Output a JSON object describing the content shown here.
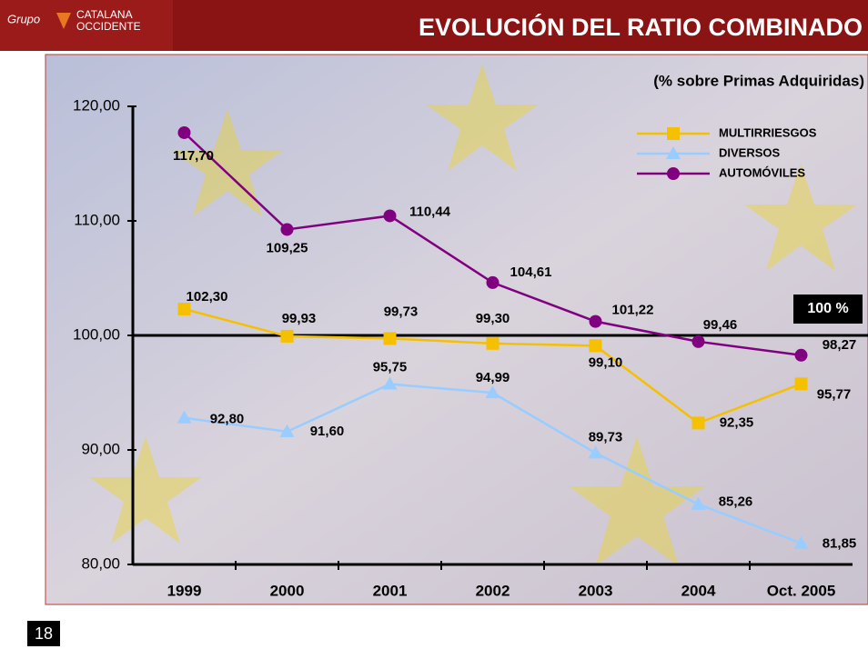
{
  "header": {
    "logo": {
      "group": "Grupo",
      "name1": "CATALANA",
      "name2": "OCCIDENTE"
    },
    "title": "EVOLUCIÓN DEL RATIO COMBINADO"
  },
  "chart_data": {
    "type": "line",
    "subtitle": "(% sobre Primas Adquiridas)",
    "categories": [
      "1999",
      "2000",
      "2001",
      "2002",
      "2003",
      "2004",
      "Oct. 2005"
    ],
    "series": [
      {
        "name": "MULTIRRIESGOS",
        "color": "#f5c000",
        "marker": "square",
        "values": [
          102.3,
          99.93,
          99.73,
          99.3,
          99.1,
          92.35,
          95.77
        ],
        "value_labels": [
          "102,30",
          "99,93",
          "99,73",
          "99,30",
          "99,10",
          "92,35",
          "95,77"
        ]
      },
      {
        "name": "DIVERSOS",
        "color": "#99ccff",
        "marker": "triangle",
        "values": [
          92.8,
          91.6,
          95.75,
          94.99,
          89.73,
          85.26,
          81.85
        ],
        "value_labels": [
          "92,80",
          "91,60",
          "95,75",
          "94,99",
          "89,73",
          "85,26",
          "81,85"
        ]
      },
      {
        "name": "AUTOMÓVILES",
        "color": "#800080",
        "marker": "circle",
        "values": [
          117.7,
          109.25,
          110.44,
          104.61,
          101.22,
          99.46,
          98.27
        ],
        "value_labels": [
          "117,70",
          "109,25",
          "110,44",
          "104,61",
          "101,22",
          "99,46",
          "98,27"
        ]
      }
    ],
    "ylim": [
      80,
      120
    ],
    "yticks": [
      {
        "value": 80,
        "label": "80,00"
      },
      {
        "value": 90,
        "label": "90,00"
      },
      {
        "value": 100,
        "label": "100,00"
      },
      {
        "value": 110,
        "label": "110,00"
      },
      {
        "value": 120,
        "label": "120,00"
      }
    ],
    "reference_line": {
      "value": 100,
      "label": "100 %"
    }
  },
  "page_number": "18"
}
